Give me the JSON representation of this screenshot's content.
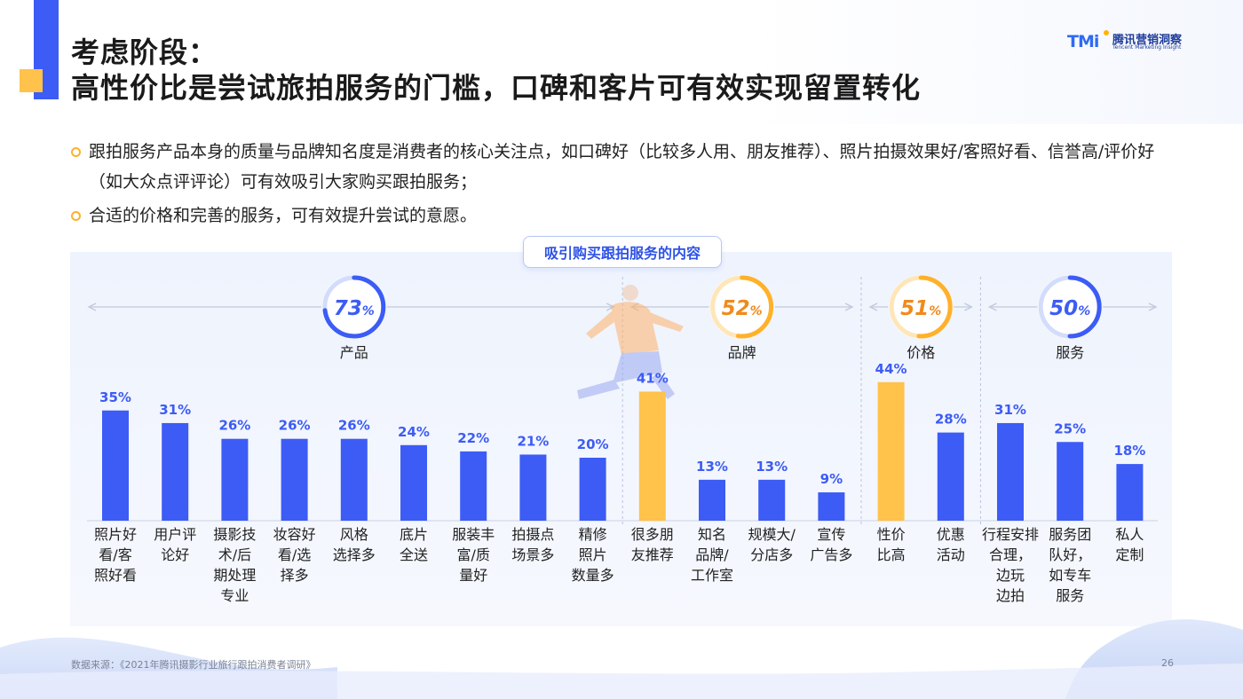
{
  "header": {
    "title_line1": "考虑阶段：",
    "title_line2": "高性价比是尝试旅拍服务的门槛，口碑和客片可有效实现留置转化"
  },
  "logo": {
    "mark": "TMi",
    "name_cn": "腾讯营销洞察",
    "name_en": "Tencent Marketing Insight"
  },
  "bullets": [
    "跟拍服务产品本身的质量与品牌知名度是消费者的核心关注点，如口碑好（比较多人用、朋友推荐）、照片拍摄效果好/客照好看、信誉高/评价好（如大众点评评论）可有效吸引大家购买跟拍服务；",
    "合适的价格和完善的服务，可有效提升尝试的意愿。"
  ],
  "chart_data": {
    "type": "bar",
    "title": "吸引购买跟拍服务的内容",
    "value_unit": "%",
    "ylim": [
      0,
      50
    ],
    "colors": {
      "normal": "#3c5cf5",
      "highlight": "#ffc24b"
    },
    "groups": [
      {
        "name": "产品",
        "percent": 73,
        "ring_color": "#3c5cf5",
        "ring_track": "#d3dcfb",
        "text_color": "#3c5cf5"
      },
      {
        "name": "品牌",
        "percent": 52,
        "ring_color": "#ffb12b",
        "ring_track": "#ffe6b8",
        "text_color": "#f08a1c"
      },
      {
        "name": "价格",
        "percent": 51,
        "ring_color": "#ffb12b",
        "ring_track": "#ffe6b8",
        "text_color": "#f08a1c"
      },
      {
        "name": "服务",
        "percent": 50,
        "ring_color": "#3c5cf5",
        "ring_track": "#d3dcfb",
        "text_color": "#3c5cf5"
      }
    ],
    "categories": [
      {
        "label": [
          "照片好",
          "看/客",
          "照好看"
        ],
        "value": 35,
        "group": "产品",
        "highlight": false
      },
      {
        "label": [
          "用户评",
          "论好"
        ],
        "value": 31,
        "group": "产品",
        "highlight": false
      },
      {
        "label": [
          "摄影技",
          "术/后",
          "期处理",
          "专业"
        ],
        "value": 26,
        "group": "产品",
        "highlight": false
      },
      {
        "label": [
          "妆容好",
          "看/选",
          "择多"
        ],
        "value": 26,
        "group": "产品",
        "highlight": false
      },
      {
        "label": [
          "风格",
          "选择多"
        ],
        "value": 26,
        "group": "产品",
        "highlight": false
      },
      {
        "label": [
          "底片",
          "全送"
        ],
        "value": 24,
        "group": "产品",
        "highlight": false
      },
      {
        "label": [
          "服装丰",
          "富/质",
          "量好"
        ],
        "value": 22,
        "group": "产品",
        "highlight": false
      },
      {
        "label": [
          "拍摄点",
          "场景多"
        ],
        "value": 21,
        "group": "产品",
        "highlight": false
      },
      {
        "label": [
          "精修",
          "照片",
          "数量多"
        ],
        "value": 20,
        "group": "产品",
        "highlight": false
      },
      {
        "label": [
          "很多朋",
          "友推荐"
        ],
        "value": 41,
        "group": "品牌",
        "highlight": true
      },
      {
        "label": [
          "知名",
          "品牌/",
          "工作室"
        ],
        "value": 13,
        "group": "品牌",
        "highlight": false
      },
      {
        "label": [
          "规模大/",
          "分店多"
        ],
        "value": 13,
        "group": "品牌",
        "highlight": false
      },
      {
        "label": [
          "宣传",
          "广告多"
        ],
        "value": 9,
        "group": "品牌",
        "highlight": false
      },
      {
        "label": [
          "性价",
          "比高"
        ],
        "value": 44,
        "group": "价格",
        "highlight": true
      },
      {
        "label": [
          "优惠",
          "活动"
        ],
        "value": 28,
        "group": "价格",
        "highlight": false
      },
      {
        "label": [
          "行程安排",
          "合理，",
          "边玩",
          "边拍"
        ],
        "value": 31,
        "group": "服务",
        "highlight": false
      },
      {
        "label": [
          "服务团",
          "队好，",
          "如专车",
          "服务"
        ],
        "value": 25,
        "group": "服务",
        "highlight": false
      },
      {
        "label": [
          "私人",
          "定制"
        ],
        "value": 18,
        "group": "服务",
        "highlight": false
      }
    ]
  },
  "footer": {
    "source": "数据来源：《2021年腾讯摄影行业旅行跟拍消费者调研》",
    "page_number": "26"
  }
}
